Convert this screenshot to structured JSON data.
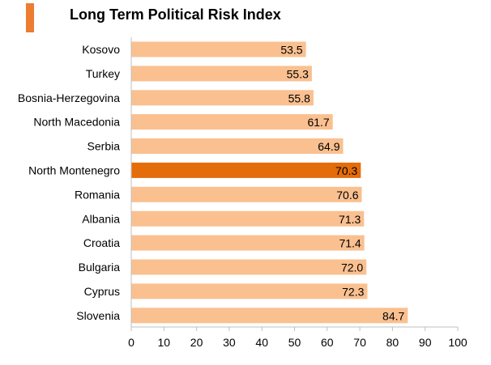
{
  "chart_data": {
    "type": "bar",
    "orientation": "horizontal",
    "title": "Long Term Political Risk Index",
    "categories": [
      "Kosovo",
      "Turkey",
      "Bosnia-Herzegovina",
      "North Macedonia",
      "Serbia",
      "North Montenegro",
      "Romania",
      "Albania",
      "Croatia",
      "Bulgaria",
      "Cyprus",
      "Slovenia"
    ],
    "values": [
      53.5,
      55.3,
      55.8,
      61.7,
      64.9,
      70.3,
      70.6,
      71.3,
      71.4,
      72.0,
      72.3,
      84.7
    ],
    "value_labels": [
      "53.5",
      "55.3",
      "55.8",
      "61.7",
      "64.9",
      "70.3",
      "70.6",
      "71.3",
      "71.4",
      "72.0",
      "72.3",
      "84.7"
    ],
    "highlight_category": "North Montenegro",
    "xlim": [
      0,
      100
    ],
    "xticks": [
      "0",
      "10",
      "20",
      "30",
      "40",
      "50",
      "60",
      "70",
      "80",
      "90",
      "100"
    ],
    "grid": false,
    "legend": "none",
    "colors": {
      "bar": "#fac090",
      "highlight": "#e46c0a",
      "title_mark": "#ed7d31",
      "text": "#000000",
      "axis": "#bfbfbf"
    }
  }
}
